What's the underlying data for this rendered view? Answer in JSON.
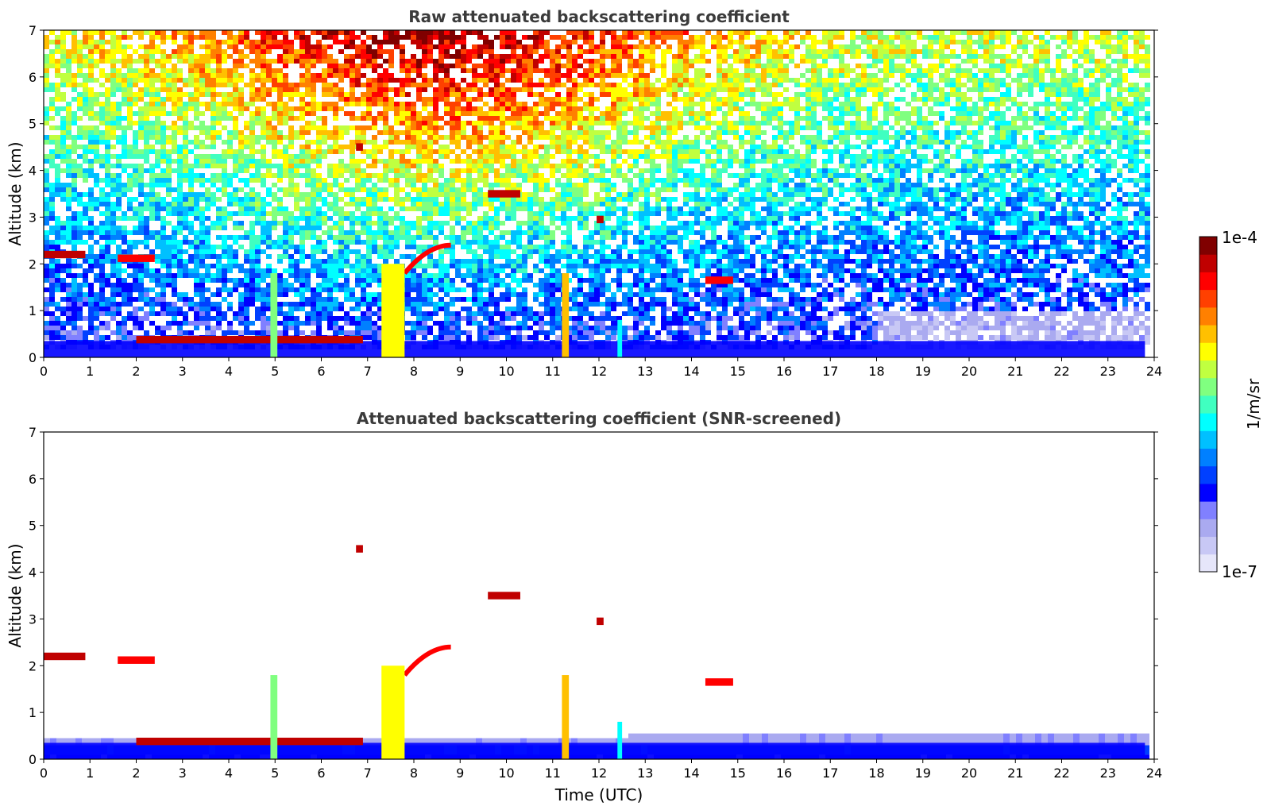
{
  "chart_data": [
    {
      "type": "heatmap",
      "title": "Raw attenuated backscattering coefficient",
      "xlabel": "",
      "ylabel": "Altitude (km)",
      "xlim": [
        0,
        24
      ],
      "ylim": [
        0,
        7
      ],
      "xticks": [
        "0",
        "1",
        "2",
        "3",
        "4",
        "5",
        "6",
        "7",
        "8",
        "9",
        "10",
        "11",
        "12",
        "13",
        "14",
        "15",
        "16",
        "17",
        "18",
        "19",
        "20",
        "21",
        "22",
        "23",
        "24"
      ],
      "yticks": [
        "0",
        "1",
        "2",
        "3",
        "4",
        "5",
        "6",
        "7"
      ],
      "data_extent_x": [
        0,
        23.8
      ],
      "background_noise": "dense speckle increasing with altitude; red near top around 6-11 UTC",
      "features": [
        {
          "kind": "layer",
          "t0": 0.0,
          "t1": 0.9,
          "alt": 2.2,
          "level": 0.95
        },
        {
          "kind": "layer",
          "t0": 1.6,
          "t1": 2.4,
          "alt": 2.12,
          "level": 0.9
        },
        {
          "kind": "layer",
          "t0": 2.0,
          "t1": 6.9,
          "alt": 0.38,
          "level": 0.92
        },
        {
          "kind": "arc",
          "t0": 7.8,
          "t1": 8.8,
          "alt0": 1.8,
          "alt1": 2.4,
          "level": 0.9
        },
        {
          "kind": "column",
          "t0": 4.9,
          "t1": 5.05,
          "alt": 1.8,
          "level": 0.55
        },
        {
          "kind": "column",
          "t0": 7.3,
          "t1": 7.8,
          "alt": 2.0,
          "level": 0.65
        },
        {
          "kind": "column",
          "t0": 11.2,
          "t1": 11.35,
          "alt": 1.8,
          "level": 0.7
        },
        {
          "kind": "column",
          "t0": 12.4,
          "t1": 12.5,
          "alt": 0.8,
          "level": 0.45
        },
        {
          "kind": "patch",
          "t: ": 0,
          "t0": 9.6,
          "t1": 10.3,
          "alt": 3.5,
          "level": 0.95
        },
        {
          "kind": "patch",
          "t0": 6.75,
          "t1": 6.9,
          "alt": 4.5,
          "level": 0.95
        },
        {
          "kind": "patch",
          "t0": 11.95,
          "t1": 12.1,
          "alt": 2.95,
          "level": 0.95
        },
        {
          "kind": "patch",
          "t0": 14.3,
          "t1": 14.9,
          "alt": 1.65,
          "level": 0.9
        }
      ]
    },
    {
      "type": "heatmap",
      "title": "Attenuated backscattering coefficient (SNR-screened)",
      "xlabel": "Time (UTC)",
      "ylabel": "Altitude (km)",
      "xlim": [
        0,
        24
      ],
      "ylim": [
        0,
        7
      ],
      "xticks": [
        "0",
        "1",
        "2",
        "3",
        "4",
        "5",
        "6",
        "7",
        "8",
        "9",
        "10",
        "11",
        "12",
        "13",
        "14",
        "15",
        "16",
        "17",
        "18",
        "19",
        "20",
        "21",
        "22",
        "23",
        "24"
      ],
      "yticks": [
        "0",
        "1",
        "2",
        "3",
        "4",
        "5",
        "6",
        "7"
      ],
      "data_extent_x": [
        0,
        23.8
      ],
      "features": [
        {
          "kind": "layer",
          "t0": 0.0,
          "t1": 0.9,
          "alt": 2.2,
          "level": 0.95
        },
        {
          "kind": "layer",
          "t0": 1.6,
          "t1": 2.4,
          "alt": 2.12,
          "level": 0.9
        },
        {
          "kind": "layer",
          "t0": 2.0,
          "t1": 6.9,
          "alt": 0.38,
          "level": 0.92
        },
        {
          "kind": "arc",
          "t0": 7.8,
          "t1": 8.8,
          "alt0": 1.8,
          "alt1": 2.4,
          "level": 0.9
        },
        {
          "kind": "column",
          "t0": 4.9,
          "t1": 5.05,
          "alt": 1.8,
          "level": 0.55
        },
        {
          "kind": "column",
          "t0": 7.3,
          "t1": 7.8,
          "alt": 2.0,
          "level": 0.65
        },
        {
          "kind": "column",
          "t0": 11.2,
          "t1": 11.35,
          "alt": 1.8,
          "level": 0.7
        },
        {
          "kind": "column",
          "t0": 12.4,
          "t1": 12.5,
          "alt": 0.8,
          "level": 0.45
        },
        {
          "kind": "patch",
          "t0": 9.6,
          "t1": 10.3,
          "alt": 3.5,
          "level": 0.95
        },
        {
          "kind": "patch",
          "t0": 6.75,
          "t1": 6.9,
          "alt": 4.5,
          "level": 0.95
        },
        {
          "kind": "patch",
          "t0": 11.95,
          "t1": 12.1,
          "alt": 2.95,
          "level": 0.95
        },
        {
          "kind": "patch",
          "t0": 14.3,
          "t1": 14.9,
          "alt": 1.65,
          "level": 0.9
        }
      ]
    }
  ],
  "colorbar": {
    "label": "1/m/sr",
    "max_label": "1e-4",
    "min_label": "1e-7",
    "scale": "log",
    "range": [
      1e-07,
      0.0001
    ],
    "colors": [
      "#e6e6fa",
      "#c8c8f5",
      "#aaaaf0",
      "#8080ff",
      "#0000ff",
      "#0040ff",
      "#0080ff",
      "#00c0ff",
      "#00ffff",
      "#40ffc0",
      "#80ff80",
      "#c0ff40",
      "#ffff00",
      "#ffc000",
      "#ff8000",
      "#ff4000",
      "#ff0000",
      "#c00000",
      "#800000"
    ]
  }
}
